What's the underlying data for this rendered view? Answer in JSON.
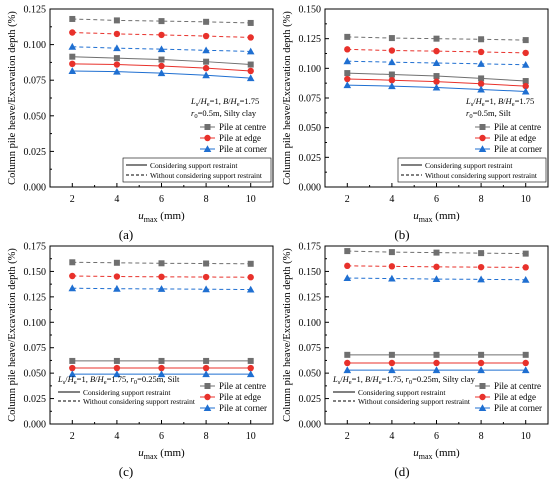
{
  "figure": {
    "y_axis_label": "Column pile heave/Excavation depth (%)",
    "x_axis_label_main": "u",
    "x_axis_label_sub": "max",
    "x_axis_label_unit": " (mm)"
  },
  "legend": {
    "markers": [
      {
        "label": "Pile at centre",
        "color": "#6f6f6f",
        "marker": "square"
      },
      {
        "label": "Pile at edge",
        "color": "#e8312b",
        "marker": "circle"
      },
      {
        "label": "Pile at corner",
        "color": "#1f6fd1",
        "marker": "triangle"
      }
    ],
    "lines": [
      {
        "label": "Considering support restraint",
        "style": "solid"
      },
      {
        "label": "Without considering support restraint",
        "style": "dashed"
      }
    ]
  },
  "chart_data": [
    {
      "id": "a",
      "panel_label": "(a)",
      "type": "line",
      "x": [
        2,
        4,
        6,
        8,
        10
      ],
      "xlim": [
        1,
        11
      ],
      "ylim": [
        0,
        0.125
      ],
      "yticks": [
        0.0,
        0.025,
        0.05,
        0.075,
        0.1,
        0.125
      ],
      "ytick_labels": [
        "0.000",
        "0.025",
        "0.050",
        "0.075",
        "0.100",
        "0.125"
      ],
      "xticks": [
        2,
        4,
        6,
        8,
        10
      ],
      "annotation": [
        {
          "type": "ratio",
          "a": "L",
          "a_sub": "s",
          "b": "H",
          "b_sub": "e",
          "value": "=1, "
        },
        {
          "type": "ratio",
          "a": "B",
          "b": "H",
          "b_sub": "e",
          "value": "=1.75"
        },
        {
          "type": "text",
          "a": "r",
          "a_sub": "0",
          "value": "=0.5m, Silty clay"
        }
      ],
      "series": [
        {
          "name": "Pile at centre",
          "style": "solid",
          "values": [
            0.0915,
            0.0905,
            0.0895,
            0.088,
            0.086
          ]
        },
        {
          "name": "Pile at edge",
          "style": "solid",
          "values": [
            0.0865,
            0.086,
            0.085,
            0.0835,
            0.0815
          ]
        },
        {
          "name": "Pile at corner",
          "style": "solid",
          "values": [
            0.0815,
            0.081,
            0.08,
            0.0785,
            0.0765
          ]
        },
        {
          "name": "Pile at centre",
          "style": "dashed",
          "values": [
            0.118,
            0.117,
            0.1165,
            0.116,
            0.1152
          ]
        },
        {
          "name": "Pile at edge",
          "style": "dashed",
          "values": [
            0.1085,
            0.1075,
            0.1068,
            0.106,
            0.105
          ]
        },
        {
          "name": "Pile at corner",
          "style": "dashed",
          "values": [
            0.0985,
            0.0975,
            0.0968,
            0.096,
            0.0952
          ]
        }
      ]
    },
    {
      "id": "b",
      "panel_label": "(b)",
      "type": "line",
      "x": [
        2,
        4,
        6,
        8,
        10
      ],
      "xlim": [
        1,
        11
      ],
      "ylim": [
        0,
        0.15
      ],
      "yticks": [
        0.0,
        0.025,
        0.05,
        0.075,
        0.1,
        0.125,
        0.15
      ],
      "ytick_labels": [
        "0.000",
        "0.025",
        "0.050",
        "0.075",
        "0.100",
        "0.125",
        "0.150"
      ],
      "xticks": [
        2,
        4,
        6,
        8,
        10
      ],
      "annotation": [
        {
          "type": "ratio",
          "a": "L",
          "a_sub": "s",
          "b": "H",
          "b_sub": "e",
          "value": "=1, "
        },
        {
          "type": "ratio",
          "a": "B",
          "b": "H",
          "b_sub": "e",
          "value": "=1.75"
        },
        {
          "type": "text",
          "a": "r",
          "a_sub": "0",
          "value": "=0.5m, Silt"
        }
      ],
      "series": [
        {
          "name": "Pile at centre",
          "style": "solid",
          "values": [
            0.096,
            0.0948,
            0.0935,
            0.0915,
            0.0893
          ]
        },
        {
          "name": "Pile at edge",
          "style": "solid",
          "values": [
            0.091,
            0.09,
            0.0888,
            0.087,
            0.085
          ]
        },
        {
          "name": "Pile at corner",
          "style": "solid",
          "values": [
            0.0858,
            0.085,
            0.0838,
            0.0822,
            0.0805
          ]
        },
        {
          "name": "Pile at centre",
          "style": "dashed",
          "values": [
            0.1265,
            0.1255,
            0.125,
            0.1245,
            0.1238
          ]
        },
        {
          "name": "Pile at edge",
          "style": "dashed",
          "values": [
            0.116,
            0.115,
            0.1145,
            0.1138,
            0.113
          ]
        },
        {
          "name": "Pile at corner",
          "style": "dashed",
          "values": [
            0.106,
            0.1052,
            0.1045,
            0.1038,
            0.103
          ]
        }
      ]
    },
    {
      "id": "c",
      "panel_label": "(c)",
      "type": "line",
      "x": [
        2,
        4,
        6,
        8,
        10
      ],
      "xlim": [
        1,
        11
      ],
      "ylim": [
        0,
        0.175
      ],
      "yticks": [
        0.0,
        0.025,
        0.05,
        0.075,
        0.1,
        0.125,
        0.15,
        0.175
      ],
      "ytick_labels": [
        "0.000",
        "0.025",
        "0.050",
        "0.075",
        "0.100",
        "0.125",
        "0.150",
        "0.175"
      ],
      "xticks": [
        2,
        4,
        6,
        8,
        10
      ],
      "annotation": [
        {
          "type": "ratio",
          "a": "L",
          "a_sub": "s",
          "b": "H",
          "b_sub": "e",
          "value": "=1, "
        },
        {
          "type": "ratio",
          "a": "B",
          "b": "H",
          "b_sub": "e",
          "value": "=1.75, "
        },
        {
          "type": "text",
          "a": "r",
          "a_sub": "0",
          "value": "=0.25m, Silt"
        }
      ],
      "series": [
        {
          "name": "Pile at centre",
          "style": "solid",
          "values": [
            0.062,
            0.062,
            0.062,
            0.062,
            0.062
          ]
        },
        {
          "name": "Pile at edge",
          "style": "solid",
          "values": [
            0.055,
            0.055,
            0.055,
            0.055,
            0.055
          ]
        },
        {
          "name": "Pile at corner",
          "style": "solid",
          "values": [
            0.049,
            0.049,
            0.049,
            0.049,
            0.049
          ]
        },
        {
          "name": "Pile at centre",
          "style": "dashed",
          "values": [
            0.159,
            0.1585,
            0.158,
            0.1578,
            0.1575
          ]
        },
        {
          "name": "Pile at edge",
          "style": "dashed",
          "values": [
            0.1455,
            0.145,
            0.1447,
            0.1445,
            0.1443
          ]
        },
        {
          "name": "Pile at corner",
          "style": "dashed",
          "values": [
            0.1335,
            0.133,
            0.1328,
            0.1325,
            0.1322
          ]
        }
      ]
    },
    {
      "id": "d",
      "panel_label": "(d)",
      "type": "line",
      "x": [
        2,
        4,
        6,
        8,
        10
      ],
      "xlim": [
        1,
        11
      ],
      "ylim": [
        0,
        0.175
      ],
      "yticks": [
        0.0,
        0.025,
        0.05,
        0.075,
        0.1,
        0.125,
        0.15,
        0.175
      ],
      "ytick_labels": [
        "0.000",
        "0.025",
        "0.050",
        "0.075",
        "0.100",
        "0.125",
        "0.150",
        "0.175"
      ],
      "xticks": [
        2,
        4,
        6,
        8,
        10
      ],
      "annotation": [
        {
          "type": "ratio",
          "a": "L",
          "a_sub": "s",
          "b": "H",
          "b_sub": "e",
          "value": "=1, "
        },
        {
          "type": "ratio",
          "a": "B",
          "b": "H",
          "b_sub": "e",
          "value": "=1.75, "
        },
        {
          "type": "text",
          "a": "r",
          "a_sub": "0",
          "value": "=0.25m, Silty clay"
        }
      ],
      "series": [
        {
          "name": "Pile at centre",
          "style": "solid",
          "values": [
            0.068,
            0.068,
            0.068,
            0.068,
            0.068
          ]
        },
        {
          "name": "Pile at edge",
          "style": "solid",
          "values": [
            0.06,
            0.06,
            0.06,
            0.06,
            0.06
          ]
        },
        {
          "name": "Pile at corner",
          "style": "solid",
          "values": [
            0.053,
            0.053,
            0.053,
            0.053,
            0.053
          ]
        },
        {
          "name": "Pile at centre",
          "style": "dashed",
          "values": [
            0.17,
            0.169,
            0.1685,
            0.168,
            0.1675
          ]
        },
        {
          "name": "Pile at edge",
          "style": "dashed",
          "values": [
            0.1555,
            0.155,
            0.1545,
            0.1542,
            0.154
          ]
        },
        {
          "name": "Pile at corner",
          "style": "dashed",
          "values": [
            0.1435,
            0.143,
            0.1425,
            0.1422,
            0.1418
          ]
        }
      ]
    }
  ]
}
